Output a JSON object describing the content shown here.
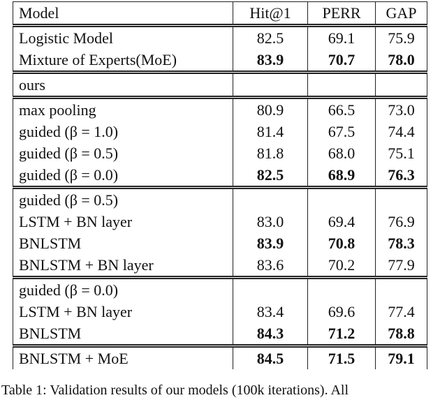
{
  "table": {
    "header": [
      "Model",
      "Hit@1",
      "PERR",
      "GAP"
    ],
    "groups": [
      {
        "rows": [
          {
            "cells": [
              "Logistic Model",
              "82.5",
              "69.1",
              "75.9"
            ],
            "bold": false
          },
          {
            "cells": [
              "Mixture of Experts(MoE)",
              "83.9",
              "70.7",
              "78.0"
            ],
            "bold": true
          }
        ]
      },
      {
        "rows": [
          {
            "cells": [
              "ours"
            ],
            "bold": false
          }
        ]
      },
      {
        "rows": [
          {
            "cells": [
              "max pooling",
              "80.9",
              "66.5",
              "73.0"
            ],
            "bold": false
          },
          {
            "cells": [
              "guided (β = 1.0)",
              "81.4",
              "67.5",
              "74.4"
            ],
            "bold": false
          },
          {
            "cells": [
              "guided (β = 0.5)",
              "81.8",
              "68.0",
              "75.1"
            ],
            "bold": false
          },
          {
            "cells": [
              "guided (β = 0.0)",
              "82.5",
              "68.9",
              "76.3"
            ],
            "bold": true
          }
        ]
      },
      {
        "rows": [
          {
            "cells": [
              "guided (β = 0.5)"
            ],
            "bold": false
          },
          {
            "cells": [
              "LSTM + BN layer",
              "83.0",
              "69.4",
              "76.9"
            ],
            "bold": false
          },
          {
            "cells": [
              "BNLSTM",
              "83.9",
              "70.8",
              "78.3"
            ],
            "bold": true
          },
          {
            "cells": [
              "BNLSTM + BN layer",
              "83.6",
              "70.2",
              "77.9"
            ],
            "bold": false
          }
        ]
      },
      {
        "rows": [
          {
            "cells": [
              "guided (β = 0.0)"
            ],
            "bold": false
          },
          {
            "cells": [
              "LSTM + BN layer",
              "83.4",
              "69.6",
              "77.4"
            ],
            "bold": false
          },
          {
            "cells": [
              "BNLSTM",
              "84.3",
              "71.2",
              "78.8"
            ],
            "bold": true
          }
        ]
      },
      {
        "rows": [
          {
            "cells": [
              "BNLSTM + MoE",
              "84.5",
              "71.5",
              "79.1"
            ],
            "bold": true
          }
        ]
      }
    ]
  },
  "caption": "Table 1: Validation results of our models (100k iterations). All"
}
